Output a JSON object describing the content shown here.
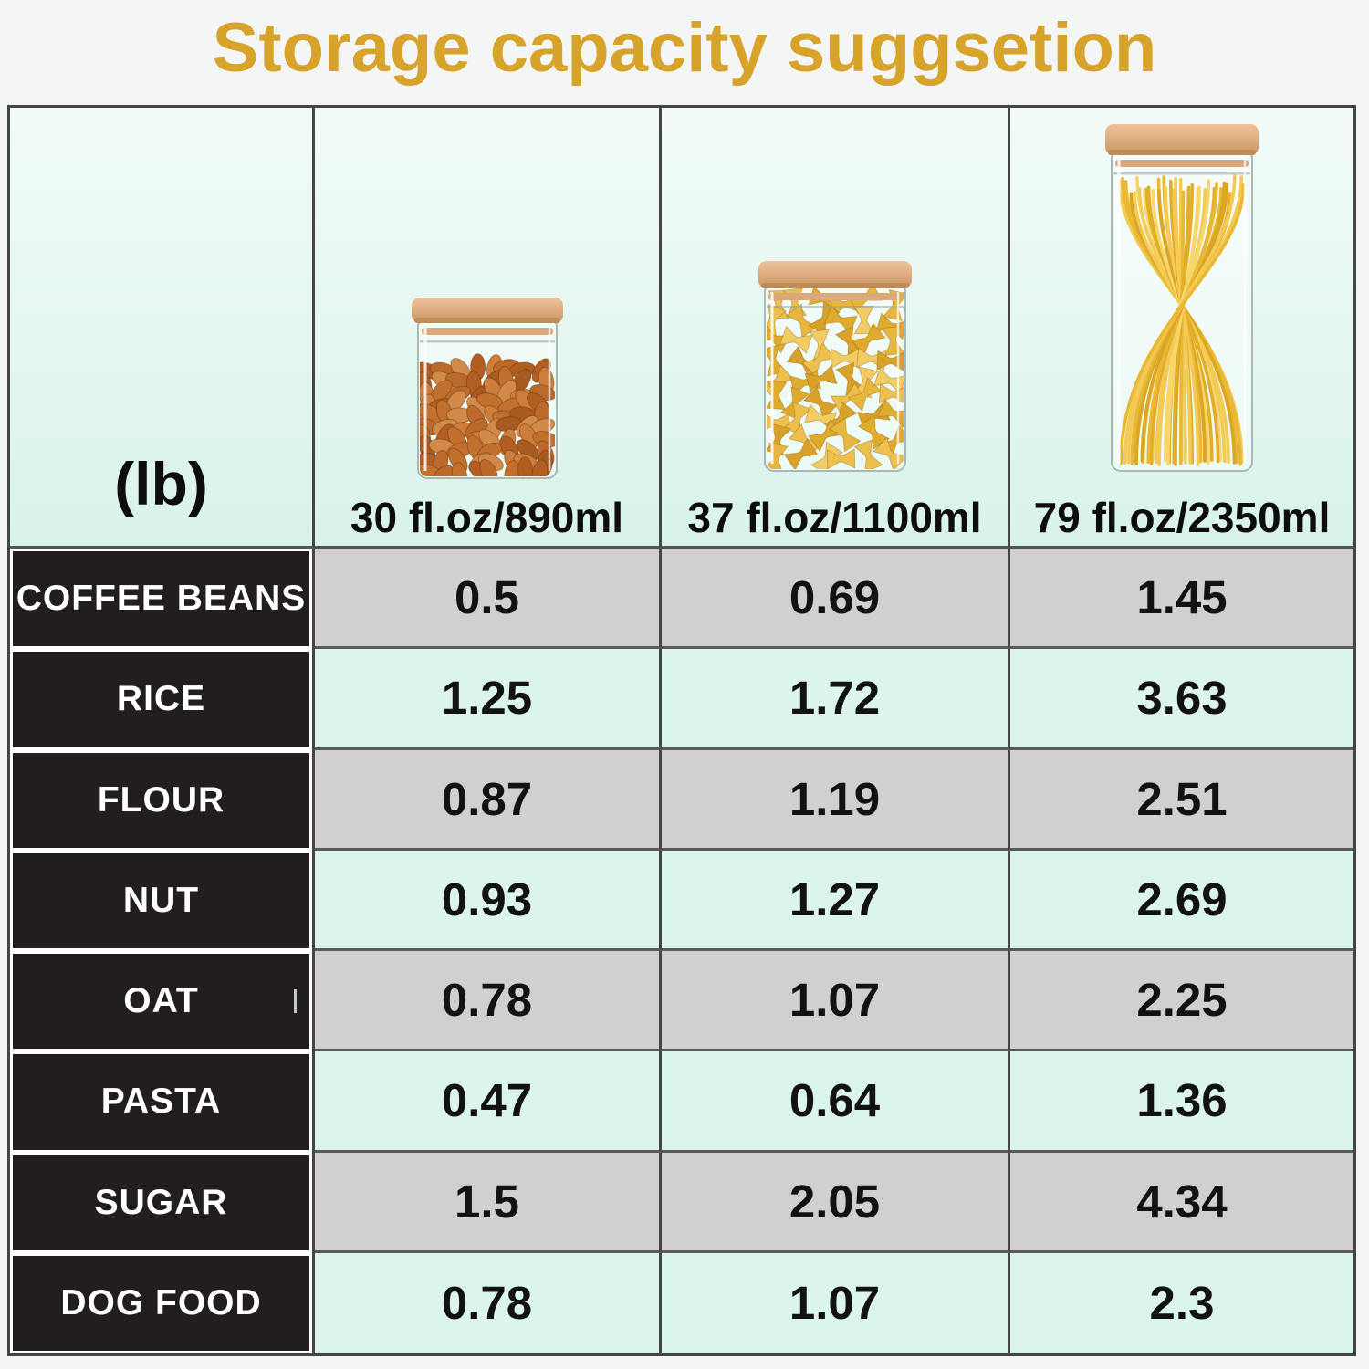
{
  "title": "Storage capacity suggsetion",
  "unit_label": "(lb)",
  "colors": {
    "title_gold": "#d7a32b",
    "mint_background": "#dcf4ee",
    "gray_row": "#d2d0ce",
    "label_black": "#211e1d",
    "border_dark": "#454545",
    "lid_tan": "#dcab7c",
    "almond_brown": "#c1702e",
    "pasta_gold": "#e9b835"
  },
  "table": {
    "columns": [
      {
        "size_label": "30 fl.oz/890ml",
        "icon": "almonds-jar-icon"
      },
      {
        "size_label": "37 fl.oz/1100ml",
        "icon": "farfalle-jar-icon"
      },
      {
        "size_label": "79 fl.oz/2350ml",
        "icon": "spaghetti-jar-icon"
      }
    ],
    "rows": [
      {
        "label": "COFFEE BEANS",
        "values": [
          "0.5",
          "0.69",
          "1.45"
        ]
      },
      {
        "label": "RICE",
        "values": [
          "1.25",
          "1.72",
          "3.63"
        ]
      },
      {
        "label": "FLOUR",
        "values": [
          "0.87",
          "1.19",
          "2.51"
        ]
      },
      {
        "label": "NUT",
        "values": [
          "0.93",
          "1.27",
          "2.69"
        ]
      },
      {
        "label": "OAT",
        "values": [
          "0.78",
          "1.07",
          "2.25"
        ],
        "tick": true
      },
      {
        "label": "PASTA",
        "values": [
          "0.47",
          "0.64",
          "1.36"
        ]
      },
      {
        "label": "SUGAR",
        "values": [
          "1.5",
          "2.05",
          "4.34"
        ]
      },
      {
        "label": "DOG FOOD",
        "values": [
          "0.78",
          "1.07",
          "2.3"
        ]
      }
    ]
  },
  "chart_data": {
    "type": "table",
    "title": "Storage capacity suggsetion",
    "unit": "lb",
    "columns": [
      "30 fl.oz/890ml",
      "37 fl.oz/1100ml",
      "79 fl.oz/2350ml"
    ],
    "rows": [
      "COFFEE BEANS",
      "RICE",
      "FLOUR",
      "NUT",
      "OAT",
      "PASTA",
      "SUGAR",
      "DOG FOOD"
    ],
    "values": [
      [
        0.5,
        0.69,
        1.45
      ],
      [
        1.25,
        1.72,
        3.63
      ],
      [
        0.87,
        1.19,
        2.51
      ],
      [
        0.93,
        1.27,
        2.69
      ],
      [
        0.78,
        1.07,
        2.25
      ],
      [
        0.47,
        0.64,
        1.36
      ],
      [
        1.5,
        2.05,
        4.34
      ],
      [
        0.78,
        1.07,
        2.3
      ]
    ]
  }
}
